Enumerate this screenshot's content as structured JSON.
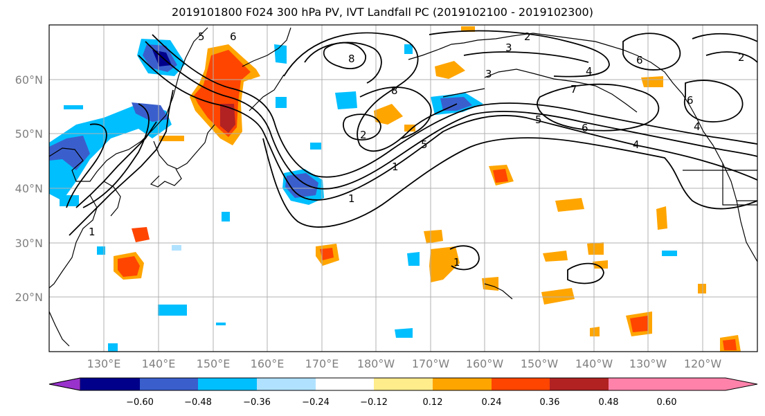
{
  "title": "2019101800 F024 300 hPa PV, IVT Landfall PC (2019102100 - 2019102300)",
  "lat_labels": [
    "60°N",
    "50°N",
    "40°N",
    "30°N",
    "20°N"
  ],
  "lon_labels": [
    "130°E",
    "140°E",
    "150°E",
    "160°E",
    "170°E",
    "180°W",
    "170°W",
    "160°W",
    "150°W",
    "140°W",
    "130°W",
    "120°W"
  ],
  "colorbar": {
    "colors": [
      "#9932cc",
      "#00008b",
      "#3a5fcd",
      "#00bfff",
      "#b0e2ff",
      "#ffffff",
      "#ffec8b",
      "#ffa500",
      "#ff4500",
      "#b22222",
      "#ff82ab"
    ],
    "ticks": [
      "−0.60",
      "−0.48",
      "−0.36",
      "−0.24",
      "−0.12",
      "0.12",
      "0.24",
      "0.36",
      "0.48",
      "0.60"
    ]
  },
  "contour_labels": [
    "5",
    "6",
    "2",
    "3",
    "8",
    "3",
    "4",
    "7",
    "6",
    "8",
    "2",
    "5",
    "1",
    "6",
    "4",
    "5",
    "4",
    "6",
    "1",
    "2",
    "1",
    "1"
  ]
}
